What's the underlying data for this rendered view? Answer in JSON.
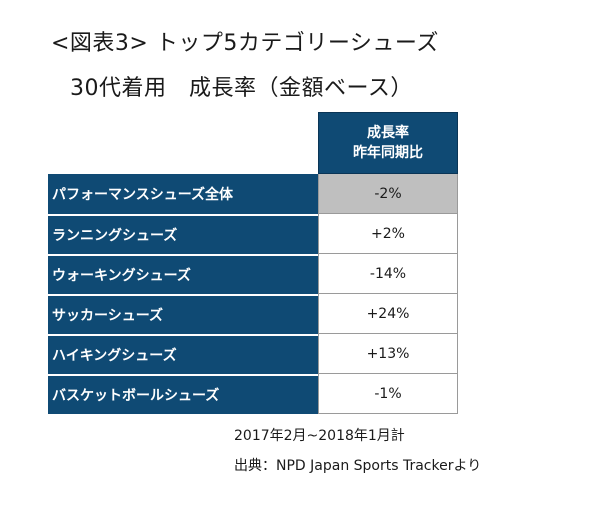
{
  "title": "<図表3> トップ5カテゴリーシューズ",
  "subtitle": "30代着用　成長率（金額ベース）",
  "chart_data": {
    "type": "table",
    "column_header_line1": "成長率",
    "column_header_line2": "昨年同期比",
    "rows": [
      {
        "label": "パフォーマンスシューズ全体",
        "value": "-2%",
        "value_num": -2
      },
      {
        "label": "ランニングシューズ",
        "value": "+2%",
        "value_num": 2
      },
      {
        "label": "ウォーキングシューズ",
        "value": "-14%",
        "value_num": -14
      },
      {
        "label": "サッカーシューズ",
        "value": "+24%",
        "value_num": 24
      },
      {
        "label": "ハイキングシューズ",
        "value": "+13%",
        "value_num": 13
      },
      {
        "label": "バスケットボールシューズ",
        "value": "-1%",
        "value_num": -1
      }
    ]
  },
  "footnote_period": "2017年2月~2018年1月計",
  "footnote_source": "出典：NPD Japan Sports Trackerより",
  "colors": {
    "header_bg": "#0f4a74",
    "total_bg": "#bfbfbf"
  }
}
